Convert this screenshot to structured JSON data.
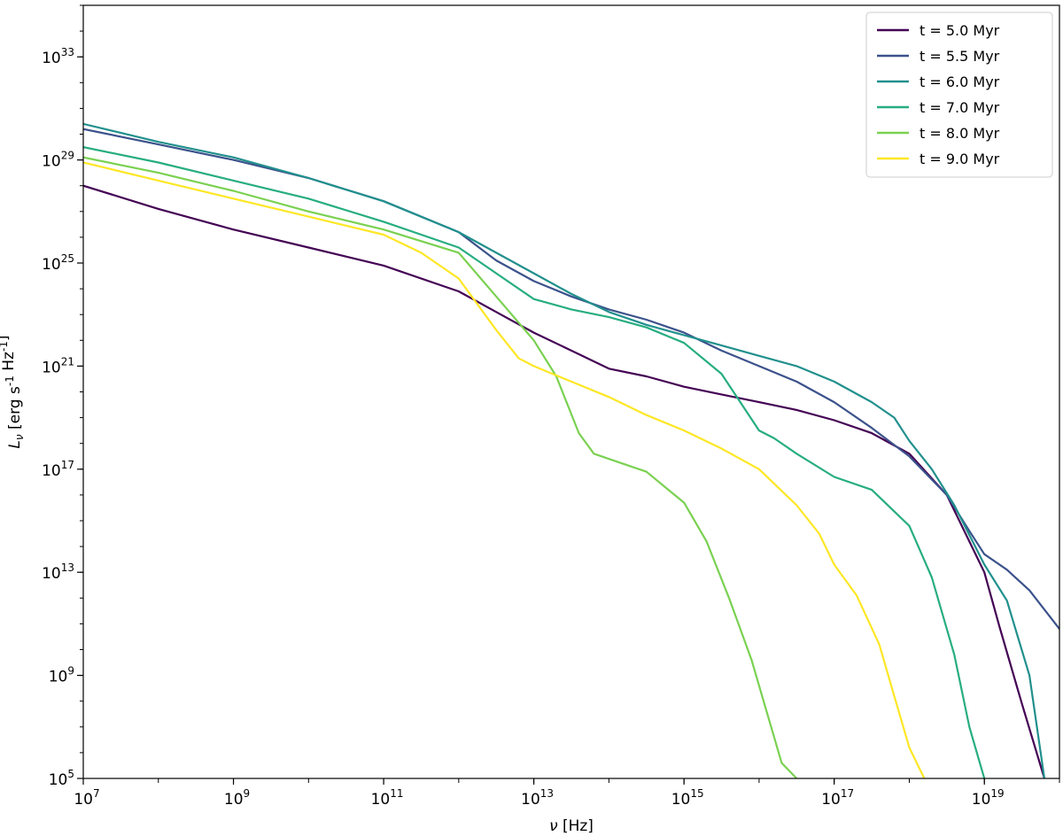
{
  "chart_data": {
    "type": "line",
    "xlabel": "ν [Hz]",
    "ylabel": "L_ν [erg s^-1 Hz^-1]",
    "xscale": "log",
    "yscale": "log",
    "xlim": [
      10000000.0,
      1e+20
    ],
    "ylim": [
      100000.0,
      1e+35
    ],
    "xticks": [
      {
        "base": "10",
        "exp": "7",
        "value": 10000000.0
      },
      {
        "base": "10",
        "exp": "9",
        "value": 1000000000.0
      },
      {
        "base": "10",
        "exp": "11",
        "value": 100000000000.0
      },
      {
        "base": "10",
        "exp": "13",
        "value": 10000000000000.0
      },
      {
        "base": "10",
        "exp": "15",
        "value": 1000000000000000.0
      },
      {
        "base": "10",
        "exp": "17",
        "value": 1e+17
      },
      {
        "base": "10",
        "exp": "19",
        "value": 1e+19
      }
    ],
    "yticks": [
      {
        "base": "10",
        "exp": "5",
        "value": 100000.0
      },
      {
        "base": "10",
        "exp": "9",
        "value": 1000000000.0
      },
      {
        "base": "10",
        "exp": "13",
        "value": 10000000000000.0
      },
      {
        "base": "10",
        "exp": "17",
        "value": 1e+17
      },
      {
        "base": "10",
        "exp": "21",
        "value": 1e+21
      },
      {
        "base": "10",
        "exp": "25",
        "value": 1e+25
      },
      {
        "base": "10",
        "exp": "29",
        "value": 1e+29
      },
      {
        "base": "10",
        "exp": "33",
        "value": 1e+33
      }
    ],
    "legend_position": "top-right",
    "grid": false,
    "series": [
      {
        "name": "t = 5.0 Myr",
        "color": "#440154",
        "log_nu": [
          7,
          8,
          9,
          10,
          11,
          12,
          12.5,
          13,
          13.5,
          14,
          14.5,
          15,
          15.5,
          16,
          16.5,
          17,
          17.5,
          18,
          18.5,
          19,
          19.2,
          19.5,
          19.8
        ],
        "log_L": [
          28.0,
          27.1,
          26.3,
          25.6,
          24.9,
          23.9,
          23.1,
          22.3,
          21.6,
          20.9,
          20.6,
          20.2,
          19.9,
          19.6,
          19.3,
          18.9,
          18.4,
          17.6,
          16.0,
          13.0,
          10.9,
          7.9,
          5.0
        ]
      },
      {
        "name": "t = 5.5 Myr",
        "color": "#3b528b",
        "log_nu": [
          7,
          8,
          9,
          10,
          11,
          12,
          12.5,
          13,
          13.5,
          14,
          14.5,
          15,
          15.5,
          16,
          16.5,
          17,
          17.5,
          18,
          18.5,
          18.8,
          19,
          19.3,
          19.6,
          20
        ],
        "log_L": [
          30.2,
          29.6,
          29.0,
          28.3,
          27.4,
          26.2,
          25.1,
          24.3,
          23.7,
          23.2,
          22.8,
          22.3,
          21.6,
          21.0,
          20.4,
          19.6,
          18.6,
          17.5,
          16.0,
          14.6,
          13.7,
          13.1,
          12.3,
          10.8
        ]
      },
      {
        "name": "t = 6.0 Myr",
        "color": "#21908d",
        "log_nu": [
          7,
          8,
          9,
          10,
          11,
          12,
          12.5,
          13,
          13.5,
          14,
          14.5,
          15,
          15.5,
          16,
          16.5,
          17,
          17.5,
          17.8,
          18,
          18.3,
          18.6,
          19,
          19.3,
          19.6,
          19.8
        ],
        "log_L": [
          30.4,
          29.7,
          29.1,
          28.3,
          27.4,
          26.2,
          25.4,
          24.6,
          23.8,
          23.1,
          22.6,
          22.2,
          21.8,
          21.4,
          21.0,
          20.4,
          19.6,
          19.0,
          18.1,
          17.0,
          15.6,
          13.3,
          11.9,
          9.0,
          5.0
        ]
      },
      {
        "name": "t = 7.0 Myr",
        "color": "#27ad81",
        "log_nu": [
          7,
          8,
          9,
          10,
          11,
          12,
          12.5,
          13,
          13.5,
          14,
          14.5,
          15,
          15.5,
          16,
          16.2,
          16.5,
          17,
          17.5,
          18,
          18.3,
          18.6,
          18.8,
          19.0
        ],
        "log_L": [
          29.5,
          28.9,
          28.2,
          27.5,
          26.6,
          25.6,
          24.6,
          23.6,
          23.2,
          22.9,
          22.5,
          21.9,
          20.7,
          18.5,
          18.2,
          17.6,
          16.7,
          16.2,
          14.8,
          12.8,
          9.8,
          7.0,
          5.0
        ]
      },
      {
        "name": "t = 8.0 Myr",
        "color": "#7ad151",
        "log_nu": [
          7,
          8,
          9,
          10,
          11,
          12,
          12.5,
          13,
          13.3,
          13.6,
          13.8,
          14,
          14.5,
          15,
          15.3,
          15.6,
          15.9,
          16.1,
          16.3,
          16.5
        ],
        "log_L": [
          29.1,
          28.5,
          27.8,
          27.0,
          26.3,
          25.4,
          23.7,
          22.0,
          20.6,
          18.4,
          17.6,
          17.4,
          16.9,
          15.7,
          14.2,
          12.0,
          9.6,
          7.6,
          5.6,
          5.0
        ]
      },
      {
        "name": "t = 9.0 Myr",
        "color": "#fde725",
        "log_nu": [
          7,
          8,
          9,
          10,
          11,
          11.5,
          12,
          12.5,
          12.8,
          13,
          13.5,
          14,
          14.5,
          15,
          15.5,
          16,
          16.5,
          16.8,
          17,
          17.3,
          17.6,
          17.8,
          18.0,
          18.2
        ],
        "log_L": [
          28.9,
          28.2,
          27.5,
          26.8,
          26.1,
          25.4,
          24.4,
          22.4,
          21.3,
          21.0,
          20.4,
          19.8,
          19.1,
          18.5,
          17.8,
          17.0,
          15.6,
          14.5,
          13.3,
          12.1,
          10.2,
          8.2,
          6.2,
          5.0
        ]
      }
    ]
  }
}
